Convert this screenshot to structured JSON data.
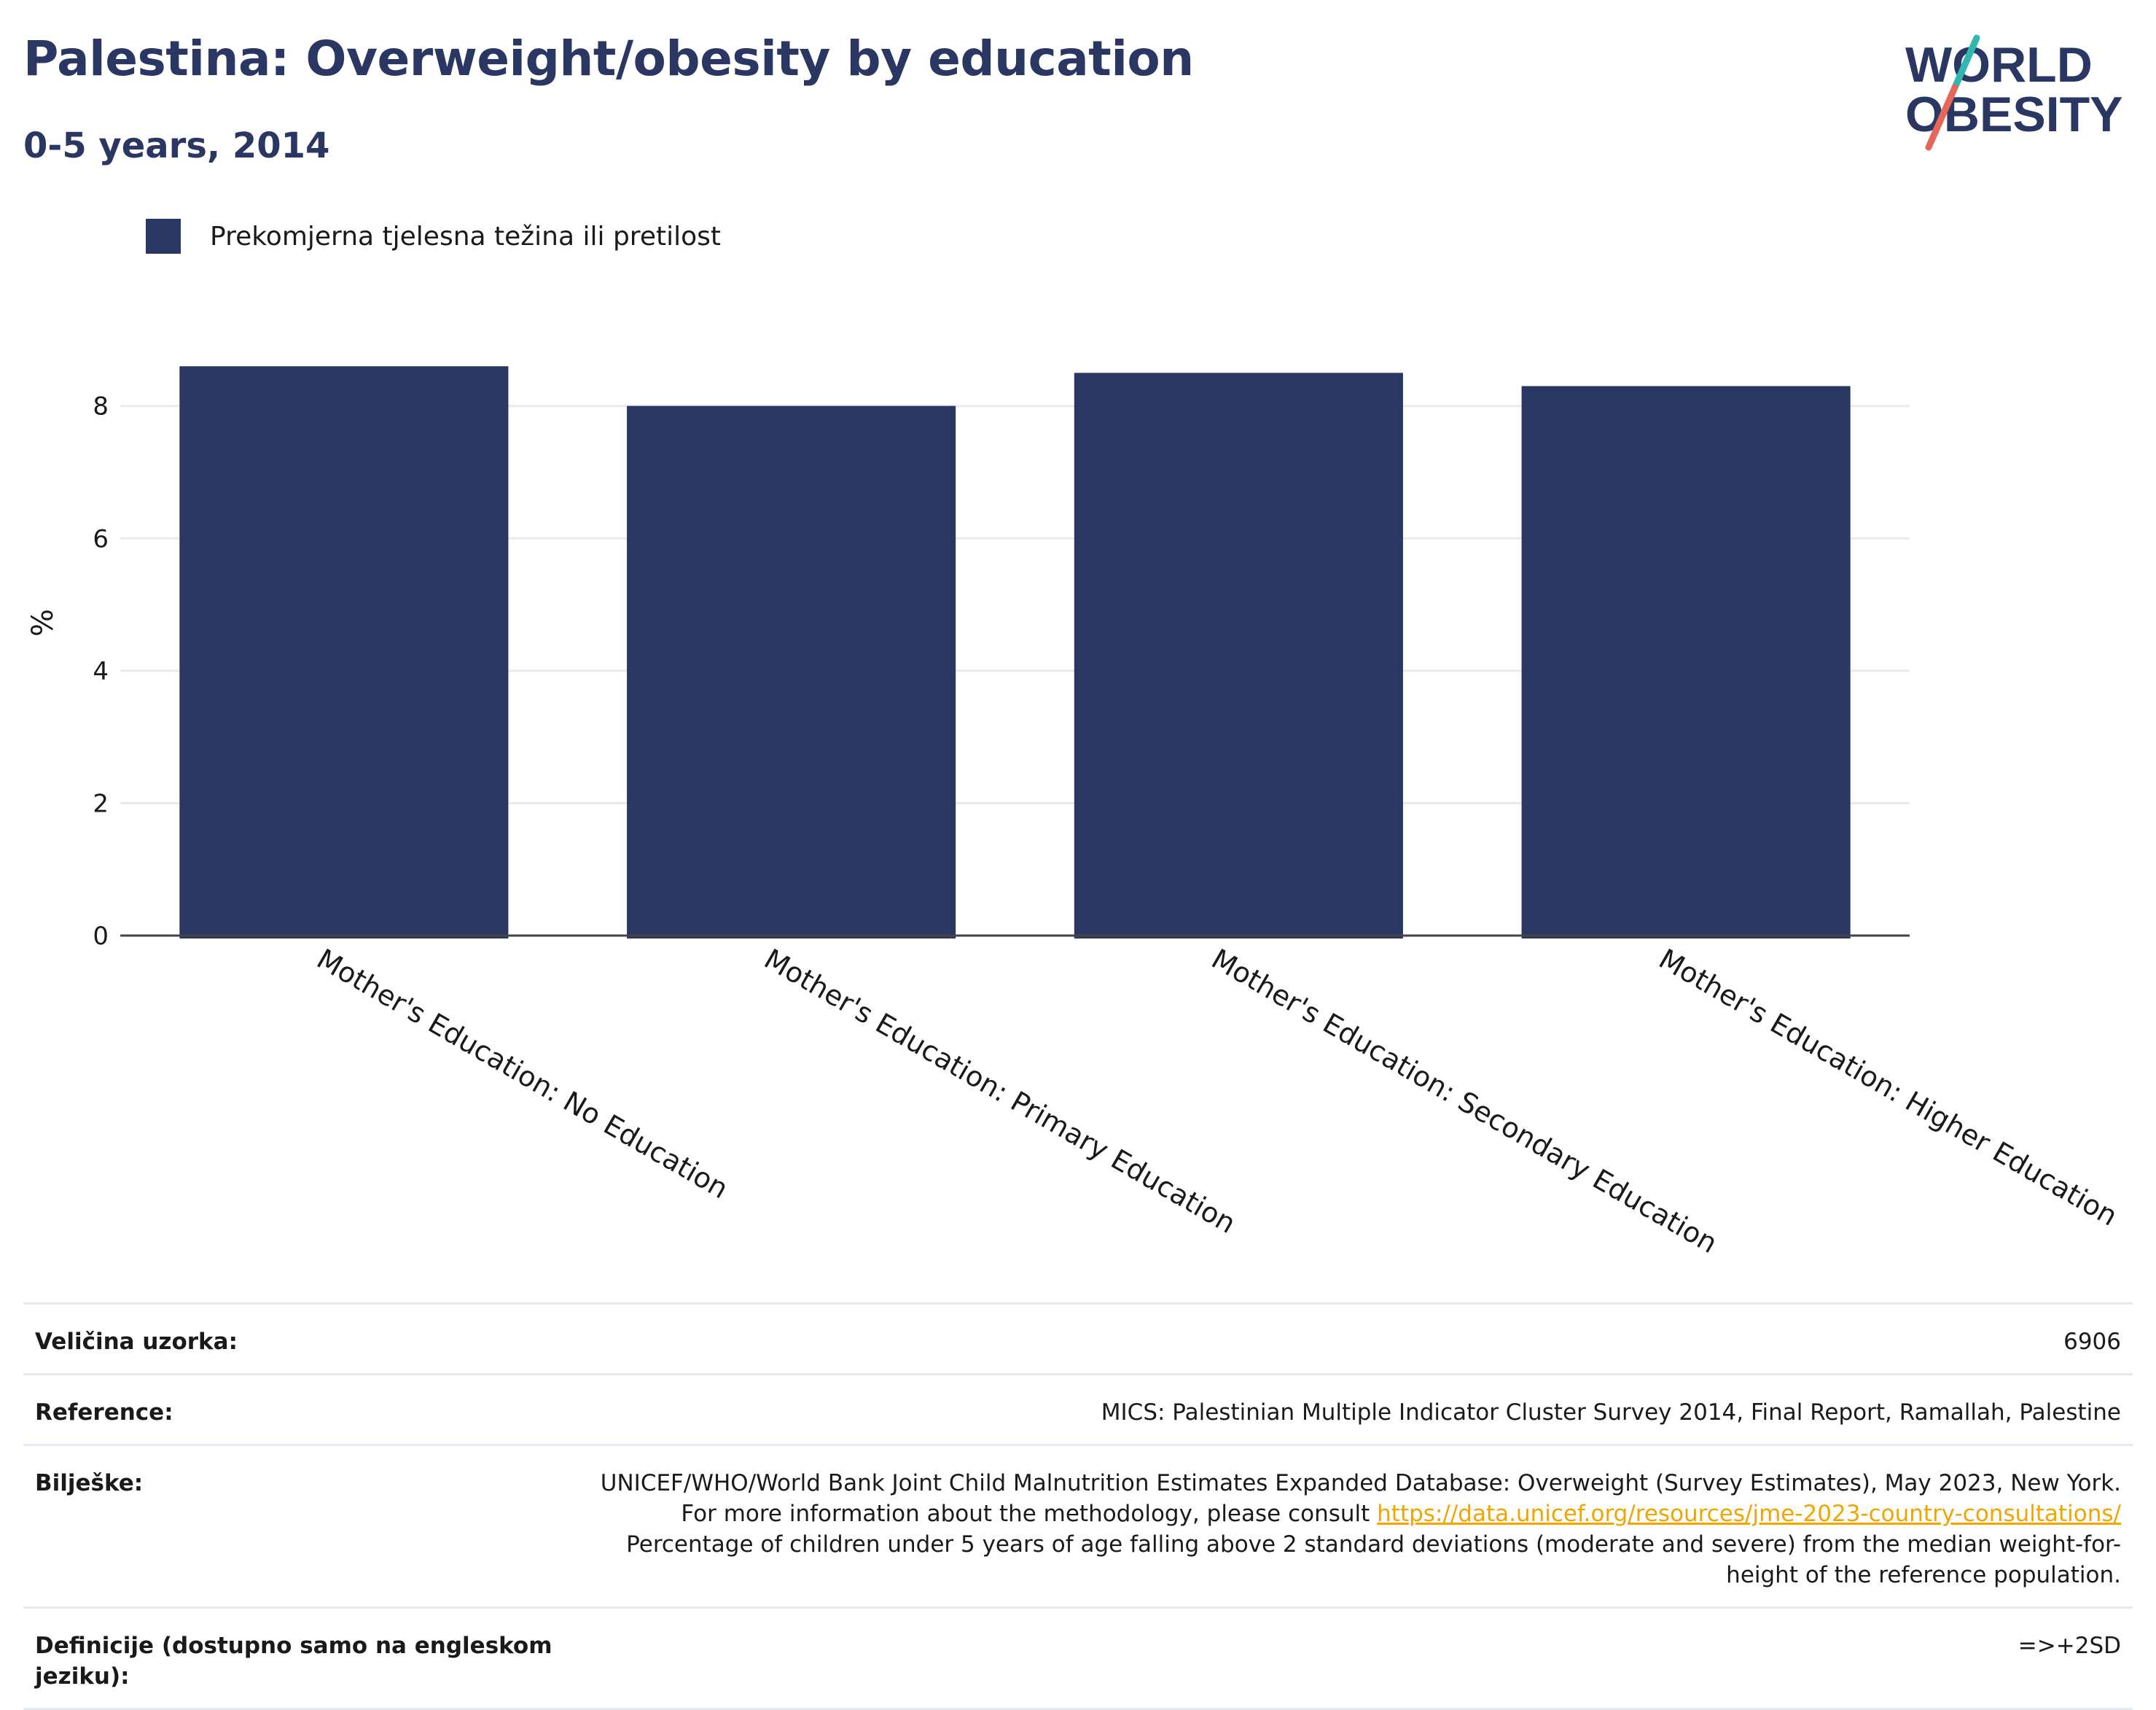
{
  "header": {
    "title": "Palestina: Overweight/obesity by education",
    "subtitle": "0-5 years, 2014"
  },
  "logo": {
    "line1": "WORLD",
    "line2": "OBESITY"
  },
  "legend": {
    "label": "Prekomjerna tjelesna težina ili pretilost",
    "color": "#2b3763"
  },
  "chart_data": {
    "type": "bar",
    "categories": [
      "Mother's Education: No Education",
      "Mother's Education: Primary Education",
      "Mother's Education: Secondary Education",
      "Mother's Education: Higher Education"
    ],
    "series": [
      {
        "name": "Prekomjerna tjelesna težina ili pretilost",
        "values": [
          8.6,
          8.0,
          8.5,
          8.3
        ],
        "color": "#2b3763"
      }
    ],
    "ylabel": "%",
    "ylim": [
      0,
      8.9
    ],
    "yticks": [
      0,
      2,
      4,
      6,
      8
    ],
    "grid": true,
    "legend_position": "top-left"
  },
  "info": {
    "sample_label": "Veličina uzorka:",
    "sample_value": "6906",
    "reference_label": "Reference:",
    "reference_value": "MICS: Palestinian Multiple Indicator Cluster Survey 2014, Final Report, Ramallah, Palestine",
    "notes_label": "Bilješke:",
    "notes_text_1": "UNICEF/WHO/World Bank Joint Child Malnutrition Estimates Expanded Database: Overweight (Survey Estimates), May 2023, New York. For more information about the methodology, please consult ",
    "notes_link": "https://data.unicef.org/resources/jme-2023-country-consultations/",
    "notes_text_2": "Percentage of children under 5 years of age falling above 2 standard deviations (moderate and severe) from the median weight-for-height of the reference population.",
    "definitions_label": "Definicije (dostupno samo na engleskom jeziku):",
    "definitions_value": "=>+2SD"
  }
}
